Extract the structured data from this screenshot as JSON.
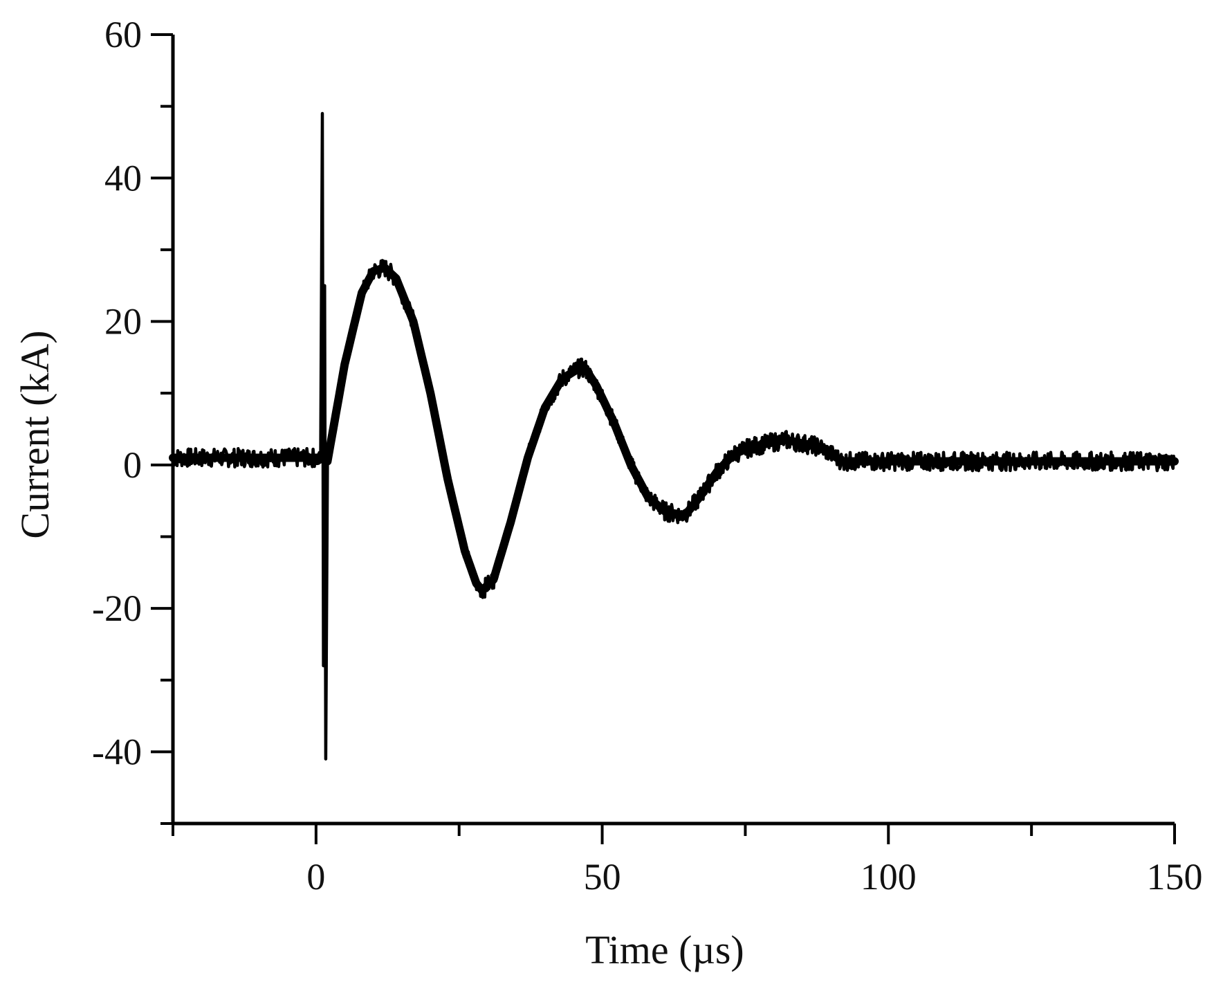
{
  "chart_data": {
    "type": "line",
    "title": "",
    "xlabel": "Time (µs)",
    "ylabel": "Current (kA)",
    "xlim": [
      -25,
      150
    ],
    "ylim": [
      -50,
      60
    ],
    "x_ticks_major": [
      0,
      50,
      100,
      150
    ],
    "x_ticks_minor": [
      -25,
      25,
      75,
      125
    ],
    "y_ticks_major": [
      -40,
      -20,
      0,
      20,
      40,
      60
    ],
    "y_ticks_minor": [
      -50,
      -30,
      -10,
      10,
      30,
      50
    ],
    "x_tick_labels": [
      "0",
      "50",
      "100",
      "150"
    ],
    "y_tick_labels": [
      "-40",
      "-20",
      "0",
      "20",
      "40",
      "60"
    ],
    "grid": false,
    "legend": "none",
    "line_color": "#000000",
    "series": [
      {
        "x": [
          -25,
          0,
          0.8,
          1.1,
          1.3,
          1.5,
          1.7,
          2,
          5,
          8,
          10,
          12,
          14,
          17,
          20,
          23,
          26,
          28,
          29,
          31,
          34,
          37,
          40,
          43,
          46,
          47,
          49,
          52,
          55,
          58,
          61,
          64,
          65,
          67,
          70,
          73,
          76,
          79,
          82,
          85,
          88,
          92,
          100,
          120,
          150
        ],
        "y": [
          1,
          1,
          0.5,
          49,
          -28,
          25,
          -41,
          0.5,
          14,
          24,
          27,
          27.5,
          26,
          20,
          10,
          -2,
          -12,
          -16.5,
          -17.5,
          -16,
          -8,
          1,
          8,
          12,
          13.5,
          13.5,
          11,
          6,
          0,
          -4.5,
          -6.5,
          -7,
          -6.5,
          -4.5,
          -1,
          1.5,
          2.5,
          3,
          3.5,
          3,
          2.5,
          0.5,
          0.5,
          0.5,
          0.5
        ]
      }
    ]
  }
}
